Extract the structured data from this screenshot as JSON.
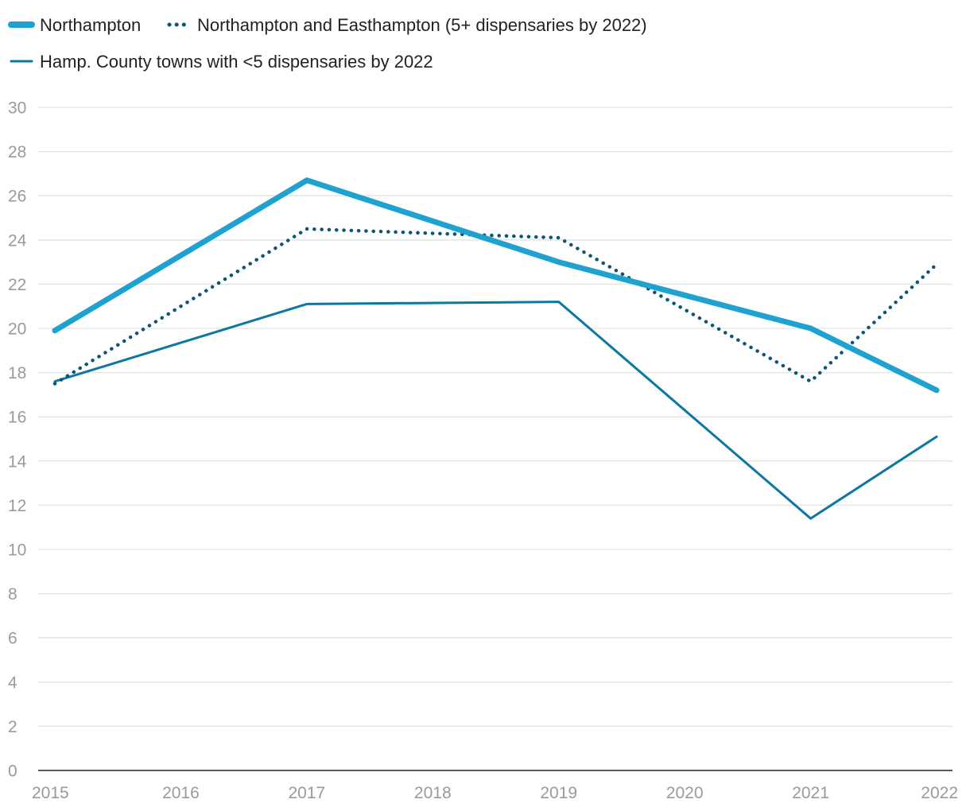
{
  "chart_data": {
    "type": "line",
    "title": "",
    "xlabel": "",
    "ylabel": "",
    "categories": [
      "2015",
      "2016",
      "2017",
      "2018",
      "2019",
      "2020",
      "2021",
      "2022"
    ],
    "x": [
      2015,
      2017,
      2019,
      2021,
      2022
    ],
    "ylim": [
      0,
      30
    ],
    "yticks": [
      0,
      2,
      4,
      6,
      8,
      10,
      12,
      14,
      16,
      18,
      20,
      22,
      24,
      26,
      28,
      30
    ],
    "grid": true,
    "legend_position": "top-left",
    "series": [
      {
        "name": "Northampton",
        "x": [
          2015,
          2017,
          2019,
          2021,
          2022
        ],
        "values": [
          19.9,
          26.7,
          23.0,
          20.0,
          17.2
        ],
        "color": "#1fa2d0",
        "style": "solid-thick"
      },
      {
        "name": "Northampton and Easthampton (5+ dispensaries by 2022)",
        "x": [
          2015,
          2017,
          2019,
          2021,
          2022
        ],
        "values": [
          17.5,
          24.5,
          24.1,
          17.6,
          22.9
        ],
        "color": "#0b5577",
        "style": "dotted"
      },
      {
        "name": "Hamp. County towns with <5 dispensaries by 2022",
        "x": [
          2015,
          2017,
          2019,
          2021,
          2022
        ],
        "values": [
          17.6,
          21.1,
          21.2,
          11.4,
          15.1
        ],
        "color": "#0c77a0",
        "style": "solid-thin"
      }
    ]
  }
}
